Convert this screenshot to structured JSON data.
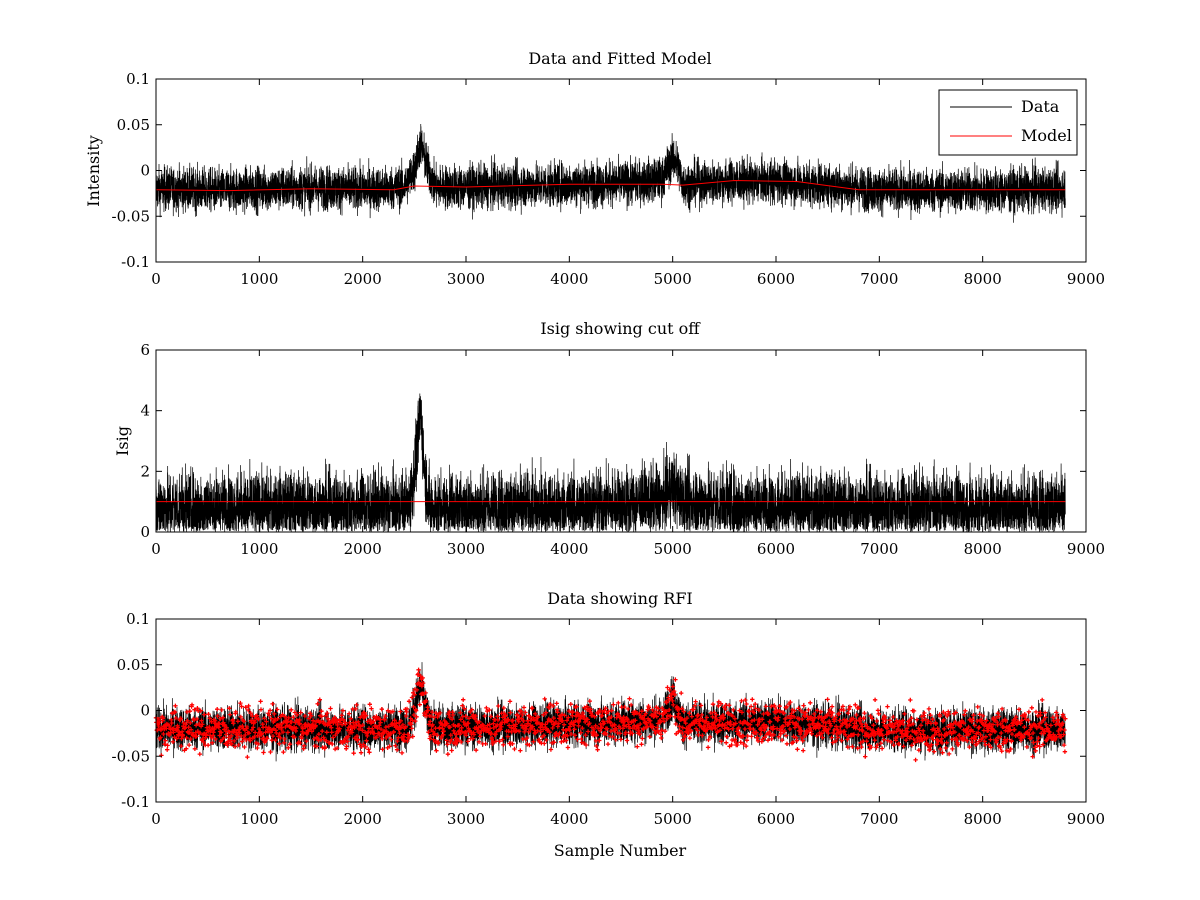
{
  "chart_data": [
    {
      "type": "line",
      "title": "Data and Fitted Model",
      "xlabel": "",
      "ylabel": "Intensity",
      "xlim": [
        0,
        9000
      ],
      "ylim": [
        -0.1,
        0.1
      ],
      "xticks": [
        0,
        1000,
        2000,
        3000,
        4000,
        5000,
        6000,
        7000,
        8000,
        9000
      ],
      "xtick_labels": [
        "0",
        "1000",
        "2000",
        "3000",
        "4000",
        "5000",
        "6000",
        "7000",
        "8000",
        "9000"
      ],
      "yticks": [
        -0.1,
        -0.05,
        0,
        0.05,
        0.1
      ],
      "ytick_labels": [
        "-0.1",
        "-0.05",
        "0",
        "0.05",
        "0.1"
      ],
      "legend": {
        "position": "top-right",
        "entries": [
          "Data",
          "Model"
        ]
      },
      "series": [
        {
          "name": "Data",
          "color": "#000000",
          "style": "line",
          "x": [
            0,
            200,
            400,
            600,
            800,
            1000,
            1200,
            1400,
            1600,
            1800,
            2000,
            2200,
            2400,
            2500,
            2560,
            2620,
            2700,
            3000,
            3500,
            4000,
            4500,
            4900,
            5000,
            5050,
            5100,
            5500,
            6000,
            6500,
            7000,
            7500,
            8000,
            8500,
            8800
          ],
          "y": [
            -0.02,
            -0.02,
            -0.021,
            -0.022,
            -0.021,
            -0.02,
            -0.02,
            -0.019,
            -0.019,
            -0.02,
            -0.02,
            -0.02,
            -0.018,
            0.0,
            0.03,
            0.005,
            -0.018,
            -0.018,
            -0.017,
            -0.015,
            -0.014,
            -0.01,
            0.015,
            0.005,
            -0.015,
            -0.012,
            -0.012,
            -0.016,
            -0.022,
            -0.022,
            -0.022,
            -0.021,
            -0.02
          ],
          "noise_sd": 0.012,
          "points": 8800
        },
        {
          "name": "Model",
          "color": "#ff0000",
          "style": "line",
          "x": [
            0,
            700,
            1500,
            2300,
            2500,
            3000,
            4000,
            4900,
            5100,
            5600,
            6200,
            6800,
            7500,
            8800
          ],
          "y": [
            -0.021,
            -0.022,
            -0.02,
            -0.021,
            -0.017,
            -0.018,
            -0.015,
            -0.015,
            -0.016,
            -0.011,
            -0.012,
            -0.021,
            -0.021,
            -0.021
          ]
        }
      ]
    },
    {
      "type": "line",
      "title": "Isig showing cut off",
      "xlabel": "",
      "ylabel": "Isig",
      "xlim": [
        0,
        9000
      ],
      "ylim": [
        0,
        6
      ],
      "xticks": [
        0,
        1000,
        2000,
        3000,
        4000,
        5000,
        6000,
        7000,
        8000,
        9000
      ],
      "xtick_labels": [
        "0",
        "1000",
        "2000",
        "3000",
        "4000",
        "5000",
        "6000",
        "7000",
        "8000",
        "9000"
      ],
      "yticks": [
        0,
        2,
        4,
        6
      ],
      "ytick_labels": [
        "0",
        "2",
        "4",
        "6"
      ],
      "series": [
        {
          "color": "#000000",
          "style": "line",
          "x": [
            0,
            1000,
            2000,
            2450,
            2520,
            2560,
            2600,
            2650,
            3000,
            4000,
            4900,
            5000,
            5100,
            6000,
            7000,
            8000,
            8800
          ],
          "y": [
            0.8,
            0.8,
            0.8,
            0.8,
            2.5,
            4.0,
            2.0,
            0.8,
            0.8,
            0.8,
            1.0,
            1.5,
            1.0,
            0.8,
            0.8,
            0.8,
            0.8
          ],
          "noise_sd": 0.6,
          "points": 8800
        },
        {
          "color": "#ff0000",
          "style": "line",
          "x": [
            0,
            8800
          ],
          "y": [
            1.0,
            1.0
          ]
        }
      ]
    },
    {
      "type": "scatter",
      "title": "Data showing RFI",
      "xlabel": "Sample Number",
      "ylabel": "",
      "xlim": [
        0,
        9000
      ],
      "ylim": [
        -0.1,
        0.1
      ],
      "xticks": [
        0,
        1000,
        2000,
        3000,
        4000,
        5000,
        6000,
        7000,
        8000,
        9000
      ],
      "xtick_labels": [
        "0",
        "1000",
        "2000",
        "3000",
        "4000",
        "5000",
        "6000",
        "7000",
        "8000",
        "9000"
      ],
      "yticks": [
        -0.1,
        -0.05,
        0,
        0.05,
        0.1
      ],
      "ytick_labels": [
        "-0.1",
        "-0.05",
        "0",
        "0.05",
        "0.1"
      ],
      "series": [
        {
          "color": "#000000",
          "style": "line",
          "x": [
            0,
            1000,
            2000,
            2450,
            2560,
            2650,
            3000,
            4000,
            4900,
            5000,
            5100,
            6000,
            7000,
            8000,
            8800
          ],
          "y": [
            -0.02,
            -0.02,
            -0.02,
            -0.018,
            0.028,
            -0.018,
            -0.018,
            -0.015,
            -0.01,
            0.015,
            -0.015,
            -0.012,
            -0.022,
            -0.022,
            -0.02
          ],
          "noise_sd": 0.012,
          "points": 8800
        },
        {
          "color": "#ff0000",
          "style": "markers",
          "x": [
            0,
            1000,
            2000,
            2450,
            2560,
            2650,
            3000,
            4000,
            4900,
            5000,
            5100,
            6000,
            7000,
            8000,
            8800
          ],
          "y": [
            -0.02,
            -0.02,
            -0.02,
            -0.018,
            0.028,
            -0.018,
            -0.018,
            -0.015,
            -0.01,
            0.015,
            -0.015,
            -0.012,
            -0.022,
            -0.022,
            -0.02
          ],
          "noise_sd": 0.012,
          "points": 2200
        }
      ]
    }
  ]
}
